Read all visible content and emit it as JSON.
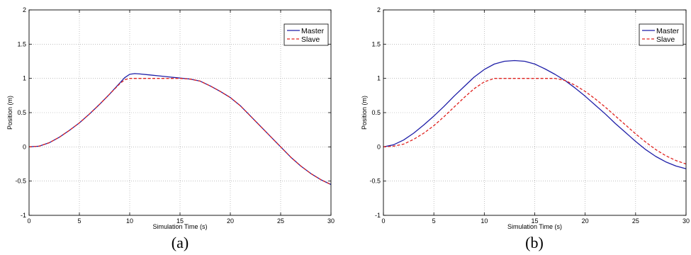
{
  "chart_data": [
    {
      "type": "line",
      "caption": "(a)",
      "xlabel": "Simulation Time (s)",
      "ylabel": "Position (m)",
      "xlim": [
        0,
        30
      ],
      "ylim": [
        -1,
        2
      ],
      "xticks": [
        0,
        5,
        10,
        15,
        20,
        25,
        30
      ],
      "yticks": [
        -1,
        -0.5,
        0,
        0.5,
        1,
        1.5,
        2
      ],
      "grid": true,
      "legend_position": "top-right",
      "series": [
        {
          "name": "Master",
          "color": "#1f1fa8",
          "dash": "solid",
          "x": [
            0,
            1,
            2,
            3,
            4,
            5,
            6,
            7,
            8,
            9,
            9.5,
            10,
            10.5,
            11,
            12,
            13,
            14,
            15,
            16,
            17,
            18,
            19,
            20,
            21,
            22,
            23,
            24,
            25,
            26,
            27,
            28,
            29,
            30
          ],
          "y": [
            0,
            0.01,
            0.06,
            0.14,
            0.24,
            0.35,
            0.48,
            0.62,
            0.77,
            0.93,
            1.01,
            1.06,
            1.07,
            1.065,
            1.05,
            1.035,
            1.02,
            1.005,
            0.99,
            0.96,
            0.89,
            0.81,
            0.72,
            0.6,
            0.45,
            0.3,
            0.15,
            0.0,
            -0.15,
            -0.28,
            -0.39,
            -0.48,
            -0.55
          ]
        },
        {
          "name": "Slave",
          "color": "#e0201c",
          "dash": "dashed",
          "x": [
            0,
            1,
            2,
            3,
            4,
            5,
            6,
            7,
            8,
            9,
            9.5,
            10,
            11,
            12,
            13,
            14,
            15,
            16,
            17,
            18,
            19,
            20,
            21,
            22,
            23,
            24,
            25,
            26,
            27,
            28,
            29,
            30
          ],
          "y": [
            0,
            0.01,
            0.06,
            0.14,
            0.24,
            0.35,
            0.48,
            0.62,
            0.77,
            0.92,
            0.98,
            1.0,
            1.0,
            1.0,
            1.0,
            1.0,
            1.0,
            0.99,
            0.96,
            0.89,
            0.81,
            0.72,
            0.6,
            0.45,
            0.3,
            0.15,
            0.0,
            -0.15,
            -0.28,
            -0.39,
            -0.48,
            -0.55
          ]
        }
      ]
    },
    {
      "type": "line",
      "caption": "(b)",
      "xlabel": "Simulation Time (s)",
      "ylabel": "Position (m)",
      "xlim": [
        0,
        30
      ],
      "ylim": [
        -1,
        2
      ],
      "xticks": [
        0,
        5,
        10,
        15,
        20,
        25,
        30
      ],
      "yticks": [
        -1,
        -0.5,
        0,
        0.5,
        1,
        1.5,
        2
      ],
      "grid": true,
      "legend_position": "top-right",
      "series": [
        {
          "name": "Master",
          "color": "#1f1fa8",
          "dash": "solid",
          "x": [
            0,
            1,
            2,
            3,
            4,
            5,
            6,
            7,
            8,
            9,
            10,
            11,
            12,
            13,
            14,
            15,
            16,
            17,
            18,
            19,
            20,
            21,
            22,
            23,
            24,
            25,
            26,
            27,
            28,
            29,
            30
          ],
          "y": [
            0,
            0.03,
            0.1,
            0.2,
            0.32,
            0.45,
            0.59,
            0.74,
            0.88,
            1.02,
            1.13,
            1.21,
            1.25,
            1.26,
            1.25,
            1.21,
            1.14,
            1.06,
            0.97,
            0.86,
            0.74,
            0.61,
            0.48,
            0.34,
            0.21,
            0.08,
            -0.04,
            -0.14,
            -0.22,
            -0.28,
            -0.32
          ]
        },
        {
          "name": "Slave",
          "color": "#e0201c",
          "dash": "dashed",
          "x": [
            0,
            1,
            2,
            3,
            4,
            5,
            6,
            7,
            8,
            9,
            10,
            11,
            12,
            13,
            14,
            15,
            16,
            17,
            18,
            19,
            20,
            21,
            22,
            23,
            24,
            25,
            26,
            27,
            28,
            29,
            30
          ],
          "y": [
            0,
            0.01,
            0.04,
            0.11,
            0.2,
            0.31,
            0.44,
            0.58,
            0.72,
            0.85,
            0.95,
            1.0,
            1.0,
            1.0,
            1.0,
            1.0,
            1.0,
            1.0,
            0.97,
            0.9,
            0.81,
            0.7,
            0.58,
            0.45,
            0.32,
            0.19,
            0.07,
            -0.04,
            -0.13,
            -0.2,
            -0.25
          ]
        }
      ]
    }
  ]
}
